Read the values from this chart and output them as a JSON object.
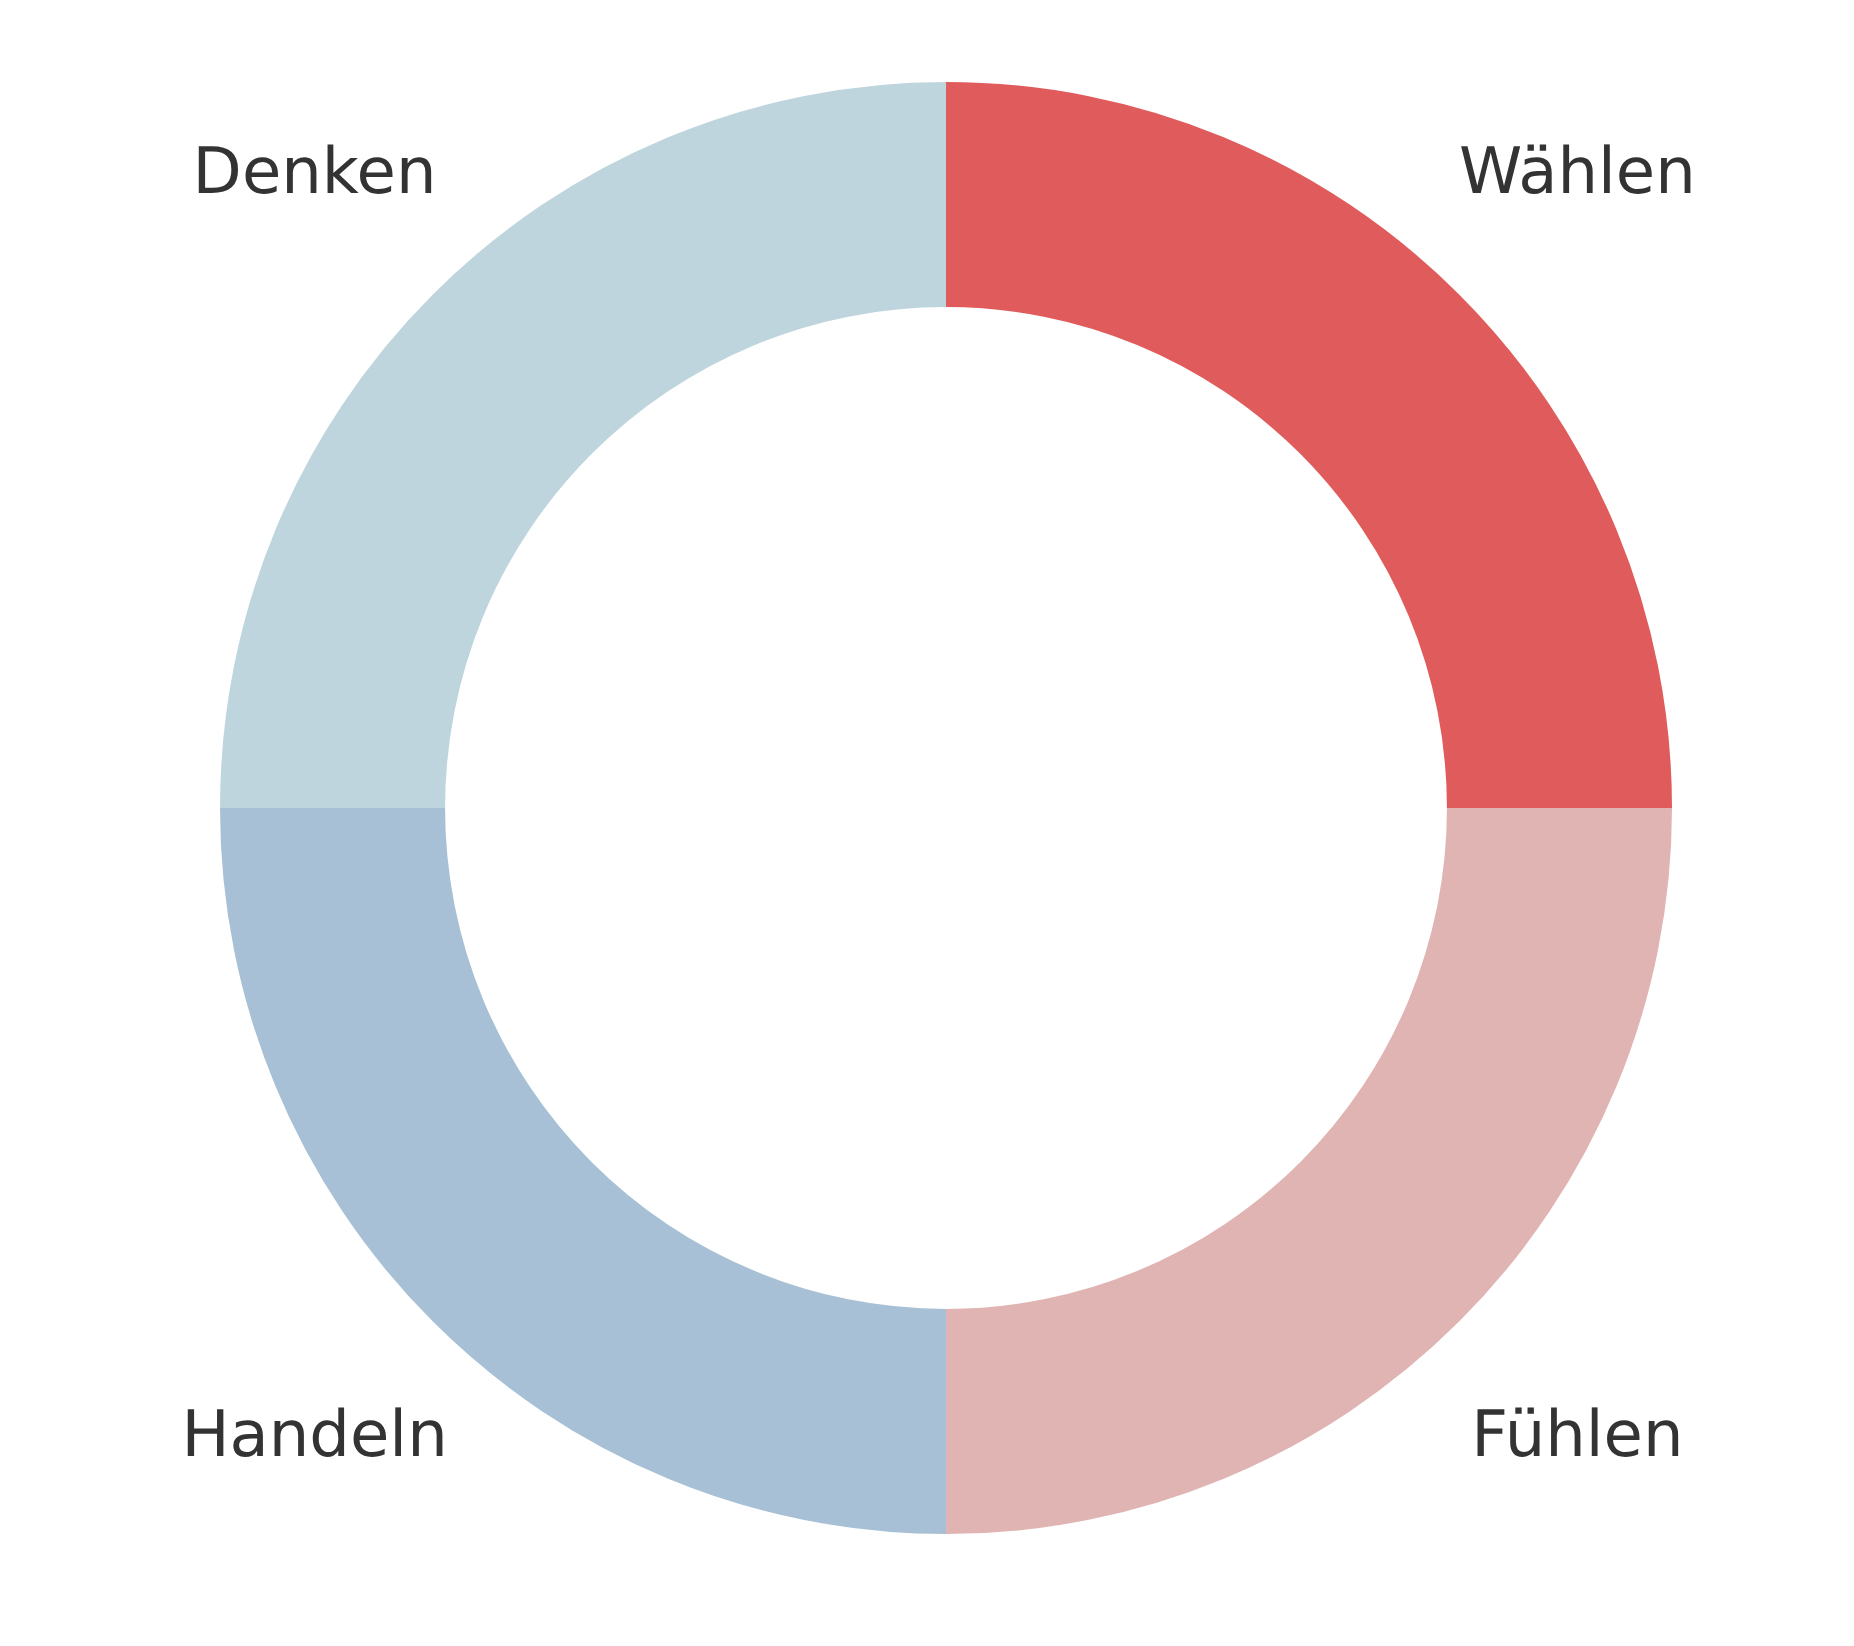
{
  "chart_data": {
    "type": "donut",
    "categories": [
      "Wählen",
      "Fühlen",
      "Handeln",
      "Denken"
    ],
    "values": [
      25,
      25,
      25,
      25
    ],
    "colors": [
      "#e05c5c",
      "#e0b4b2",
      "#a7c0d5",
      "#bfd5dd"
    ],
    "legend": false
  }
}
